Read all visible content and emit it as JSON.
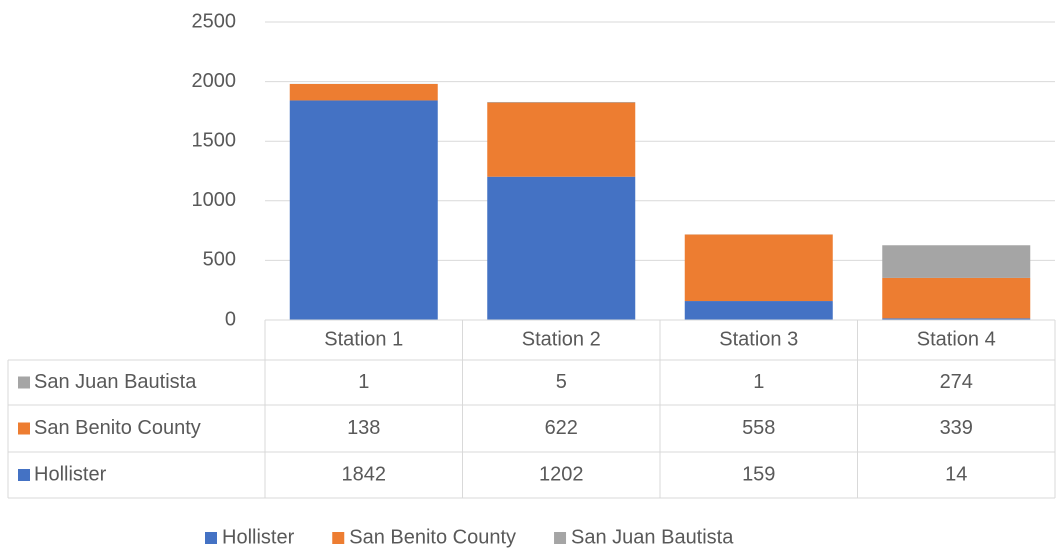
{
  "chart_data": {
    "type": "stacked_bar",
    "categories": [
      "Station 1",
      "Station 2",
      "Station 3",
      "Station 4"
    ],
    "series": [
      {
        "name": "Hollister",
        "color": "#4472c4",
        "values": [
          1842,
          1202,
          159,
          14
        ]
      },
      {
        "name": "San Benito County",
        "color": "#ed7d31",
        "values": [
          138,
          622,
          558,
          339
        ]
      },
      {
        "name": "San Juan Bautista",
        "color": "#a5a5a5",
        "values": [
          1,
          5,
          1,
          274
        ]
      }
    ],
    "ylim": [
      0,
      2500
    ],
    "yticks": [
      0,
      500,
      1000,
      1500,
      2000,
      2500
    ],
    "grid": true,
    "data_table": true,
    "legend": "bottom"
  }
}
